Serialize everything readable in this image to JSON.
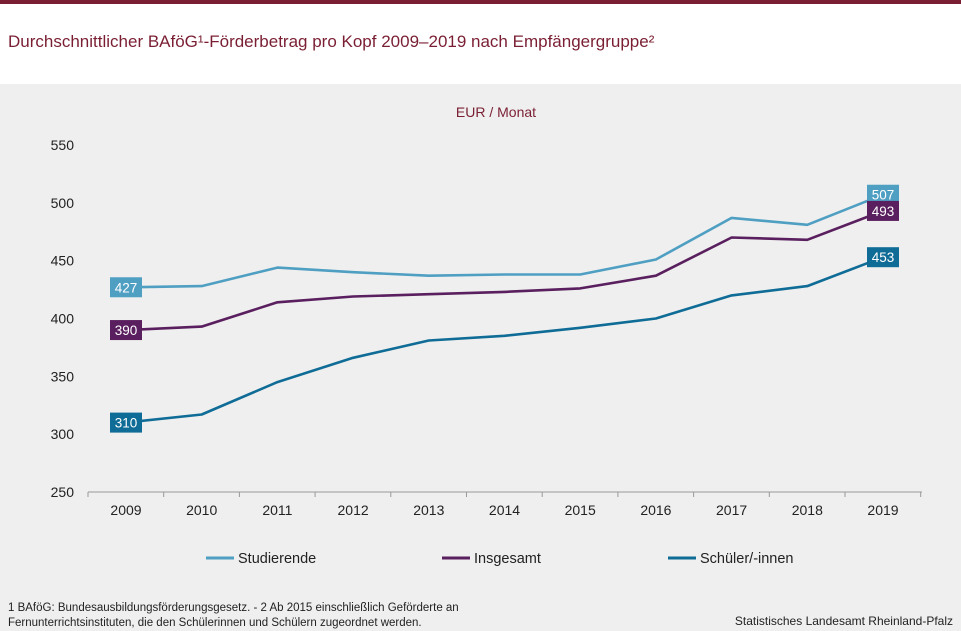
{
  "header": {
    "title": "Durchschnittlicher BAföG¹-Förderbetrag pro Kopf 2009–2019 nach Empfängergruppe²"
  },
  "footnote": "1 BAföG: Bundesausbildungsförderungsgesetz.  - 2 Ab 2015 einschließlich Geförderte an Fernunterrichtsinstituten, die den Schülerinnen und Schülern zugeordnet werden.",
  "source": "Statistisches Landesamt Rheinland-Pfalz",
  "colors": {
    "accent": "#7a1f33",
    "studierende": "#4f9fc3",
    "insgesamt": "#5a1f5e",
    "schueler": "#0f6c96"
  },
  "chart_data": {
    "type": "line",
    "unit_label": "EUR / Monat",
    "x": [
      "2009",
      "2010",
      "2011",
      "2012",
      "2013",
      "2014",
      "2015",
      "2016",
      "2017",
      "2018",
      "2019"
    ],
    "ylim": [
      250,
      550
    ],
    "yticks": [
      250,
      300,
      350,
      400,
      450,
      500,
      550
    ],
    "grid": false,
    "legend_position": "bottom",
    "series": [
      {
        "name": "Studierende",
        "color": "#4f9fc3",
        "values": [
          427,
          428,
          444,
          440,
          437,
          438,
          438,
          451,
          487,
          481,
          507
        ],
        "labelled": {
          "first": "427",
          "last": "507"
        }
      },
      {
        "name": "Insgesamt",
        "color": "#5a1f5e",
        "values": [
          390,
          393,
          414,
          419,
          421,
          423,
          426,
          437,
          470,
          468,
          493
        ],
        "labelled": {
          "first": "390",
          "last": "493"
        }
      },
      {
        "name": "Schüler/-innen",
        "color": "#0f6c96",
        "values": [
          310,
          317,
          345,
          366,
          381,
          385,
          392,
          400,
          420,
          428,
          453
        ],
        "labelled": {
          "first": "310",
          "last": "453"
        }
      }
    ]
  }
}
